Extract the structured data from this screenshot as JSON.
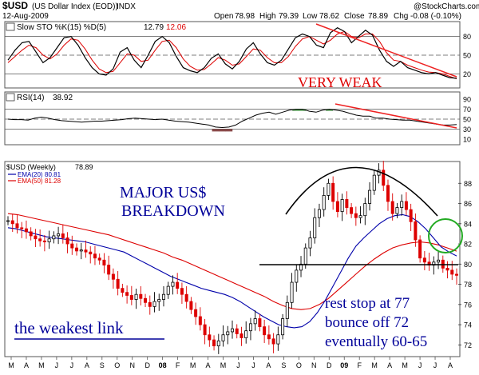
{
  "header": {
    "symbol": "$USD",
    "name": "(US Dollar Index (EOD))",
    "exchange": "INDX",
    "date": "12-Aug-2009",
    "copyright": "@StockCharts.com",
    "open_label": "Open",
    "open": "78.98",
    "high_label": "High",
    "high": "79.39",
    "low_label": "Low",
    "low": "78.62",
    "close_label": "Close",
    "close": "78.89",
    "chg_label": "Chg",
    "chg": "-0.08 (-0.10%)"
  },
  "sto_panel": {
    "label": "Slow STO %K(15) %D(5)",
    "k_value": "12.79",
    "d_value": "12.06",
    "ticks": [
      "80",
      "50",
      "20"
    ],
    "annotation": "VERY WEAK"
  },
  "rsi_panel": {
    "label": "RSI(14)",
    "value": "38.92",
    "ticks": [
      "90",
      "70",
      "50",
      "30",
      "10"
    ]
  },
  "price_panel": {
    "label": "$USD (Weekly)",
    "value": "78.89",
    "ema20_label": "EMA(20)",
    "ema20_value": "80.81",
    "ema50_label": "EMA(50)",
    "ema50_value": "81.28",
    "ticks": [
      "88",
      "86",
      "84",
      "82",
      "80",
      "78",
      "76",
      "74",
      "72"
    ],
    "annotation_major_1": "MAJOR US$",
    "annotation_major_2": "BREAKDOWN",
    "annotation_weakest": "the weakest link",
    "annotation_rest_1": "rest stop at 77",
    "annotation_rest_2": "bounce off 72",
    "annotation_rest_3": "eventually 60-65"
  },
  "x_axis": {
    "labels": [
      "M",
      "A",
      "M",
      "J",
      "J",
      "A",
      "S",
      "O",
      "N",
      "D",
      "08",
      "F",
      "M",
      "A",
      "M",
      "J",
      "J",
      "A",
      "S",
      "O",
      "N",
      "D",
      "09",
      "F",
      "M",
      "A",
      "M",
      "J",
      "J",
      "A"
    ]
  },
  "colors": {
    "price_up": "#000000",
    "price_down": "#dd0000",
    "ema20": "#0000aa",
    "ema50": "#dd0000",
    "annotation_blue": "#000099",
    "annotation_red": "#dd0000",
    "circle": "#22aa22",
    "trend_line": "#ee2222"
  },
  "chart_data": [
    {
      "type": "line",
      "title": "Slow STO %K(15) %D(5)",
      "ylim": [
        0,
        100
      ],
      "series": [
        {
          "name": "%K",
          "values": [
            42,
            58,
            70,
            72,
            55,
            38,
            46,
            62,
            78,
            80,
            66,
            46,
            30,
            20,
            18,
            28,
            55,
            62,
            42,
            30,
            50,
            72,
            80,
            70,
            48,
            30,
            25,
            22,
            30,
            45,
            52,
            36,
            28,
            40,
            60,
            70,
            52,
            38,
            34,
            42,
            60,
            78,
            84,
            80,
            66,
            62,
            86,
            94,
            88,
            70,
            80,
            90,
            82,
            58,
            40,
            32,
            40,
            30,
            26,
            22,
            20,
            22,
            18,
            14,
            13
          ]
        },
        {
          "name": "%D",
          "values": [
            38,
            48,
            58,
            66,
            62,
            50,
            44,
            52,
            66,
            76,
            74,
            60,
            42,
            28,
            22,
            24,
            38,
            52,
            50,
            40,
            42,
            58,
            72,
            74,
            62,
            44,
            32,
            26,
            27,
            36,
            46,
            42,
            34,
            36,
            48,
            60,
            58,
            46,
            38,
            38,
            48,
            64,
            76,
            80,
            74,
            68,
            74,
            84,
            88,
            80,
            78,
            84,
            84,
            72,
            54,
            42,
            40,
            34,
            30,
            26,
            23,
            22,
            20,
            16,
            12
          ]
        }
      ]
    },
    {
      "type": "line",
      "title": "RSI(14)",
      "ylim": [
        0,
        100
      ],
      "series": [
        {
          "name": "RSI(14)",
          "values": [
            50,
            49,
            49,
            48,
            52,
            54,
            52,
            49,
            47,
            46,
            45,
            44,
            45,
            46,
            46,
            47,
            48,
            49,
            51,
            52,
            51,
            50,
            49,
            50,
            48,
            46,
            45,
            44,
            42,
            40,
            38,
            34,
            33,
            34,
            38,
            46,
            52,
            58,
            62,
            64,
            60,
            64,
            68,
            70,
            70,
            66,
            64,
            68,
            70,
            68,
            66,
            62,
            58,
            56,
            56,
            52,
            52,
            50,
            49,
            48,
            48,
            46,
            44,
            42,
            40,
            38,
            38,
            39
          ]
        }
      ]
    },
    {
      "type": "line",
      "title": "$USD (Weekly)",
      "ylim": [
        71,
        90
      ],
      "series": [
        {
          "name": "$USD (Weekly)",
          "values": [
            84.3,
            84.0,
            83.6,
            83.5,
            83.2,
            82.8,
            82.5,
            82.3,
            82.2,
            82.5,
            82.8,
            83.0,
            82.6,
            82.0,
            81.6,
            81.3,
            81.4,
            81.2,
            81.0,
            80.6,
            80.4,
            79.9,
            79.0,
            78.5,
            77.6,
            77.2,
            76.9,
            76.5,
            77.0,
            76.6,
            76.2,
            75.8,
            76.3,
            76.5,
            77.0,
            77.8,
            78.2,
            77.6,
            77.0,
            76.3,
            75.5,
            74.8,
            74.0,
            73.0,
            72.5,
            71.9,
            72.4,
            73.0,
            73.3,
            73.6,
            73.1,
            72.7,
            73.4,
            74.1,
            74.6,
            73.8,
            73.0,
            72.6,
            72.1,
            73.0,
            74.6,
            76.2,
            78.2,
            79.4,
            80.0,
            81.6,
            82.6,
            84.6,
            85.4,
            86.8,
            88.0,
            86.2,
            85.2,
            86.4,
            85.6,
            85.0,
            84.6,
            84.8,
            86.0,
            87.3,
            88.8,
            89.3,
            87.8,
            86.2,
            85.0,
            85.6,
            86.2,
            85.4,
            84.2,
            82.4,
            80.6,
            80.2,
            79.9,
            80.2,
            80.4,
            79.6,
            79.4,
            79.0,
            78.89
          ]
        },
        {
          "name": "EMA(20)",
          "values": [
            83.6,
            83.5,
            83.3,
            83.1,
            82.9,
            82.7,
            82.6,
            82.5,
            82.4,
            82.3,
            82.2,
            82.0,
            81.8,
            81.6,
            81.4,
            81.2,
            80.8,
            80.4,
            80.0,
            79.6,
            79.2,
            78.8,
            78.5,
            78.2,
            77.9,
            77.6,
            77.4,
            77.2,
            77.0,
            76.7,
            76.3,
            75.8,
            75.3,
            74.8,
            74.4,
            74.0,
            73.8,
            73.7,
            73.8,
            74.3,
            75.2,
            76.4,
            77.8,
            79.2,
            80.6,
            81.8,
            82.6,
            83.3,
            84.0,
            84.5,
            84.8,
            84.9,
            84.7,
            84.2,
            83.5,
            82.6,
            81.7,
            81.2,
            80.81
          ]
        },
        {
          "name": "EMA(50)",
          "values": [
            85.0,
            84.9,
            84.7,
            84.5,
            84.3,
            84.1,
            83.9,
            83.7,
            83.5,
            83.3,
            83.1,
            82.9,
            82.6,
            82.3,
            82.0,
            81.7,
            81.4,
            81.1,
            80.7,
            80.4,
            80.0,
            79.6,
            79.2,
            78.8,
            78.4,
            78.0,
            77.6,
            77.2,
            76.8,
            76.3,
            75.9,
            75.6,
            75.5,
            75.6,
            76.0,
            76.6,
            77.4,
            78.2,
            79.0,
            79.8,
            80.5,
            81.1,
            81.6,
            81.9,
            82.1,
            82.2,
            82.1,
            81.9,
            81.6,
            81.28
          ]
        }
      ]
    }
  ]
}
